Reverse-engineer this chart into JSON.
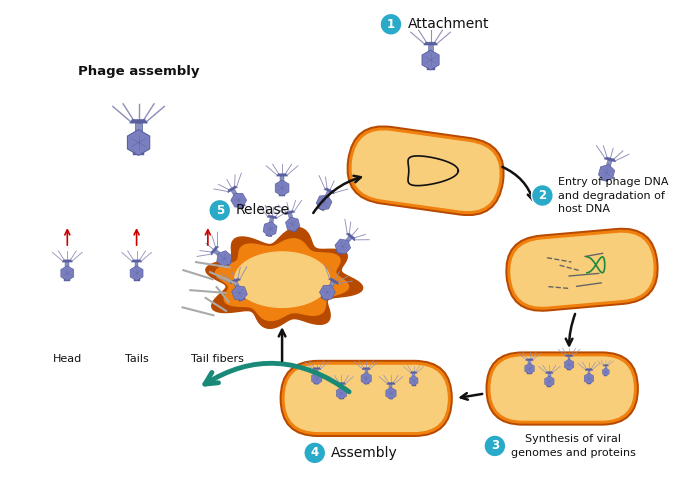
{
  "background_color": "#ffffff",
  "cell_outer_color": "#e8600a",
  "cell_mid_color": "#f0810f",
  "cell_inner_color": "#f9ce7a",
  "cell_stroke_color": "#b84a00",
  "phage_head_color": "#7a7fc0",
  "phage_head_dark": "#5a5fa0",
  "phage_head_highlight": "#aab0e0",
  "phage_body_color": "#8890c0",
  "phage_fiber_color": "#9090b8",
  "blue_circle_color": "#28aac8",
  "arrow_color": "#111111",
  "teal_arrow_color": "#1a8a78",
  "red_arrow_color": "#cc0000",
  "dna_color": "#111111",
  "viral_dna_color": "#1a8a3a",
  "step1_label": "Attachment",
  "step2_label": "Entry of phage DNA\nand degradation of\nhost DNA",
  "step3_label": "Synthesis of viral\ngenomes and proteins",
  "step4_label": "Assembly",
  "step5_label": "Release",
  "phage_assembly_label": "Phage assembly",
  "head_label": "Head",
  "tails_label": "Tails",
  "tailfibers_label": "Tail fibers",
  "figsize": [
    6.96,
    4.91
  ],
  "dpi": 100
}
